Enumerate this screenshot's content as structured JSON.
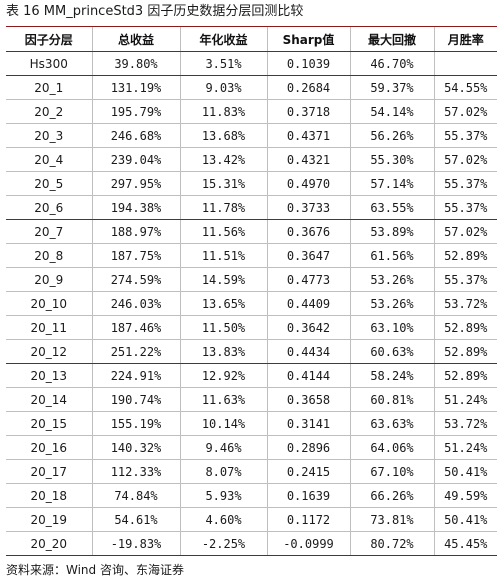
{
  "caption": "表 16 MM_princeStd3 因子历史数据分层回测比较",
  "table": {
    "headers": [
      "因子分层",
      "总收益",
      "年化收益",
      "Sharp值",
      "最大回撤",
      "月胜率"
    ],
    "rows": [
      [
        "Hs300",
        "39.80%",
        "3.51%",
        "0.1039",
        "46.70%",
        ""
      ],
      [
        "20_1",
        "131.19%",
        "9.03%",
        "0.2684",
        "59.37%",
        "54.55%"
      ],
      [
        "20_2",
        "195.79%",
        "11.83%",
        "0.3718",
        "54.14%",
        "57.02%"
      ],
      [
        "20_3",
        "246.68%",
        "13.68%",
        "0.4371",
        "56.26%",
        "55.37%"
      ],
      [
        "20_4",
        "239.04%",
        "13.42%",
        "0.4321",
        "55.30%",
        "57.02%"
      ],
      [
        "20_5",
        "297.95%",
        "15.31%",
        "0.4970",
        "57.14%",
        "55.37%"
      ],
      [
        "20_6",
        "194.38%",
        "11.78%",
        "0.3733",
        "63.55%",
        "55.37%"
      ],
      [
        "20_7",
        "188.97%",
        "11.56%",
        "0.3676",
        "53.89%",
        "57.02%"
      ],
      [
        "20_8",
        "187.75%",
        "11.51%",
        "0.3647",
        "61.56%",
        "52.89%"
      ],
      [
        "20_9",
        "274.59%",
        "14.59%",
        "0.4773",
        "53.26%",
        "55.37%"
      ],
      [
        "20_10",
        "246.03%",
        "13.65%",
        "0.4409",
        "53.26%",
        "53.72%"
      ],
      [
        "20_11",
        "187.46%",
        "11.50%",
        "0.3642",
        "63.10%",
        "52.89%"
      ],
      [
        "20_12",
        "251.22%",
        "13.83%",
        "0.4434",
        "60.63%",
        "52.89%"
      ],
      [
        "20_13",
        "224.91%",
        "12.92%",
        "0.4144",
        "58.24%",
        "52.89%"
      ],
      [
        "20_14",
        "190.74%",
        "11.63%",
        "0.3658",
        "60.81%",
        "51.24%"
      ],
      [
        "20_15",
        "155.19%",
        "10.14%",
        "0.3141",
        "63.63%",
        "53.72%"
      ],
      [
        "20_16",
        "140.32%",
        "9.46%",
        "0.2896",
        "64.06%",
        "51.24%"
      ],
      [
        "20_17",
        "112.33%",
        "8.07%",
        "0.2415",
        "67.10%",
        "50.41%"
      ],
      [
        "20_18",
        "74.84%",
        "5.93%",
        "0.1639",
        "66.26%",
        "49.59%"
      ],
      [
        "20_19",
        "54.61%",
        "4.60%",
        "0.1172",
        "73.81%",
        "50.41%"
      ],
      [
        "20_20",
        "-19.83%",
        "-2.25%",
        "-0.0999",
        "80.72%",
        "45.45%"
      ]
    ]
  },
  "source": "资料来源：Wind 咨询、东海证券",
  "colors": {
    "rule": "#8b1a1a",
    "grid": "#bfbfbf"
  }
}
